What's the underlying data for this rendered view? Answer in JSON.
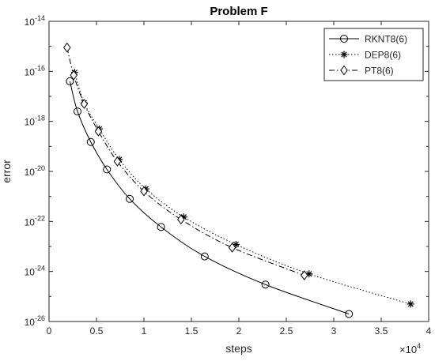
{
  "chart_data": {
    "type": "line",
    "title": "Problem F",
    "xlabel": "steps",
    "ylabel": "error",
    "x_multiplier_base": "10",
    "x_multiplier_exponent": "4",
    "x_scale_factor": 10000,
    "xlim": [
      0,
      40000
    ],
    "y_scale": "log",
    "ylim": [
      1e-26,
      1e-14
    ],
    "grid": false,
    "legend_position": "top-right",
    "x_ticks": [
      0,
      5000,
      10000,
      15000,
      20000,
      25000,
      30000,
      35000,
      40000
    ],
    "x_tick_labels": [
      "0",
      "0.5",
      "1",
      "1.5",
      "2",
      "2.5",
      "3",
      "3.5",
      "4"
    ],
    "y_tick_exponents": [
      -26,
      -24,
      -22,
      -20,
      -18,
      -16,
      -14
    ],
    "y_tick_base": "10",
    "y_tick_exponent_labels": [
      "-26",
      "-24",
      "-22",
      "-20",
      "-18",
      "-16",
      "-14"
    ],
    "series": [
      {
        "name": "RKNT8(6)",
        "marker": "circle",
        "line_style": "solid",
        "color": "#000000",
        "x": [
          2200,
          3000,
          4400,
          6100,
          8500,
          11800,
          16400,
          22800,
          31600
        ],
        "y": [
          4e-17,
          2.5e-18,
          1.5e-19,
          1.2e-20,
          8e-22,
          6e-23,
          4e-24,
          3e-25,
          2e-26
        ]
      },
      {
        "name": "DEP8(6)",
        "marker": "asterisk",
        "line_style": "dotted",
        "color": "#000000",
        "x": [
          2700,
          3700,
          5300,
          7400,
          10200,
          14200,
          19700,
          27400,
          38100
        ],
        "y": [
          9e-17,
          5.5e-18,
          5e-19,
          3e-20,
          2e-21,
          1.5e-22,
          1.2e-23,
          8e-25,
          5e-26
        ]
      },
      {
        "name": "PT8(6)",
        "marker": "diamond",
        "line_style": "dashdot",
        "color": "#000000",
        "x": [
          1900,
          2600,
          3700,
          5200,
          7200,
          10000,
          13900,
          19300,
          26900
        ],
        "y": [
          9e-16,
          7e-17,
          5e-18,
          4e-19,
          2.5e-20,
          1.6e-21,
          1.2e-22,
          9e-24,
          7e-25
        ]
      }
    ]
  }
}
